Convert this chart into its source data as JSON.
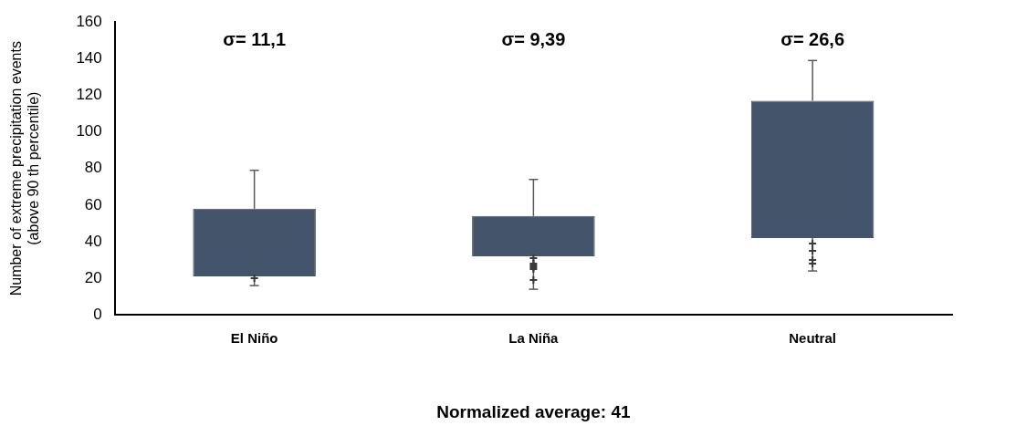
{
  "chart_data": {
    "type": "box",
    "categories": [
      "El Niño",
      "La Niña",
      "Neutral"
    ],
    "ylabel": "Number of extreme precipitation events\n(above 90 th percentile)",
    "xlabel": "Normalized average: 41",
    "color": "#44546a",
    "boxes": [
      {
        "low": 16,
        "q1": 21,
        "q3": 58,
        "high": 79
      },
      {
        "low": 14,
        "q1": 32,
        "q3": 54,
        "high": 74
      },
      {
        "low": 24,
        "q1": 42,
        "q3": 117,
        "high": 139
      }
    ],
    "series": [
      {
        "type": "scatter",
        "color": "#3a3a3a",
        "marker": "cross",
        "x": [
          "El Niño",
          "La Niña",
          "La Niña",
          "La Niña",
          "La Niña",
          "La Niña",
          "La Niña",
          "Neutral",
          "Neutral",
          "Neutral",
          "Neutral"
        ],
        "values": [
          20,
          31,
          28,
          27,
          26,
          25,
          19,
          39,
          35,
          30,
          28
        ]
      }
    ],
    "ylim": [
      0,
      160
    ],
    "yticks": [
      0,
      20,
      40,
      60,
      80,
      100,
      120,
      140,
      160
    ],
    "grid": false,
    "legend": false,
    "annotations": [
      "σ= 11,1",
      "σ= 9,39",
      "σ= 26,6"
    ]
  }
}
